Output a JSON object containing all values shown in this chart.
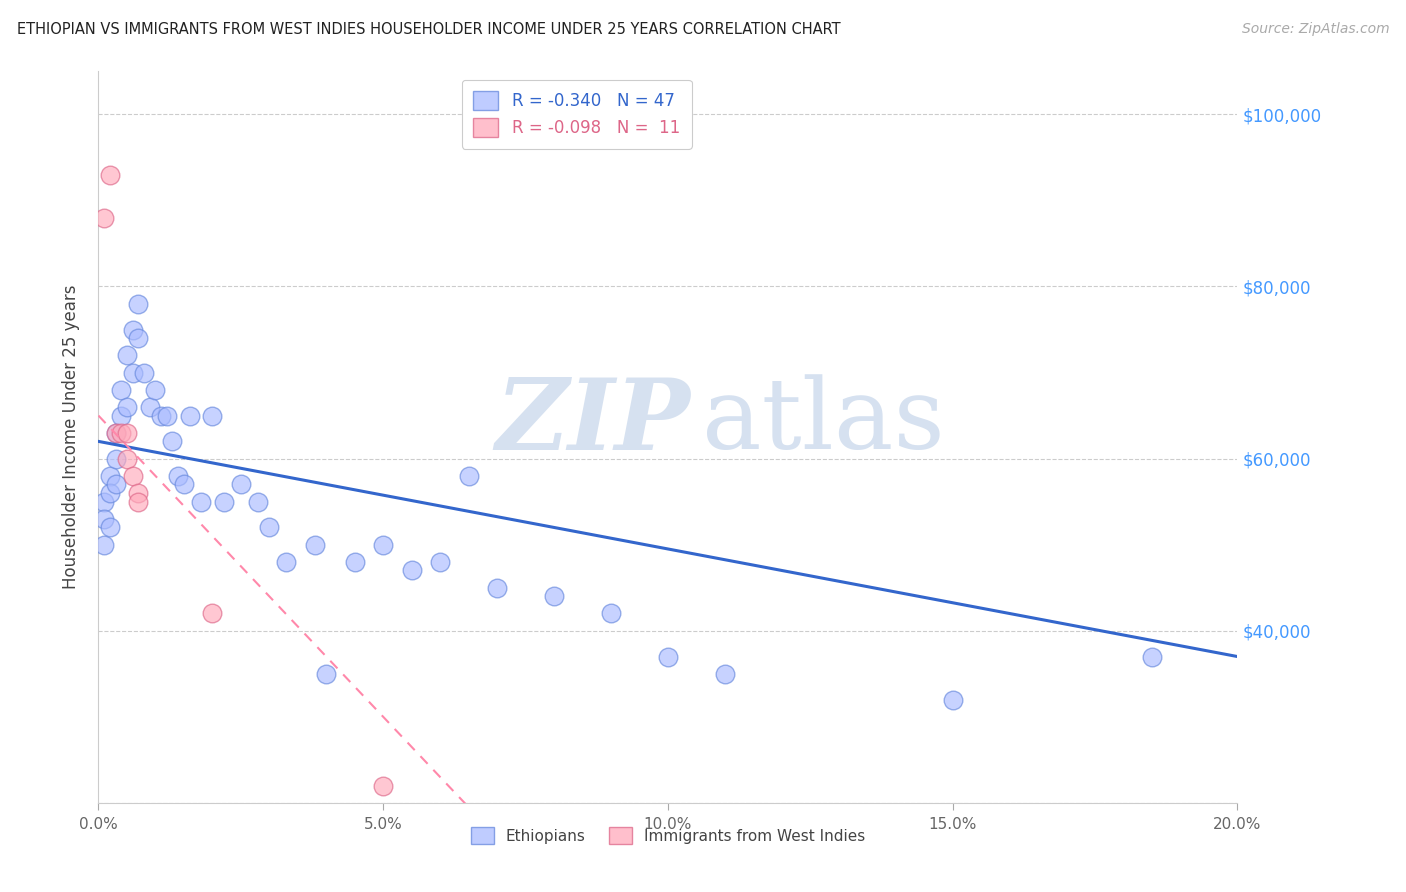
{
  "title": "ETHIOPIAN VS IMMIGRANTS FROM WEST INDIES HOUSEHOLDER INCOME UNDER 25 YEARS CORRELATION CHART",
  "source": "Source: ZipAtlas.com",
  "ylabel": "Householder Income Under 25 years",
  "xlabel_ticks": [
    "0.0%",
    "5.0%",
    "10.0%",
    "15.0%",
    "20.0%"
  ],
  "xlabel_vals": [
    0.0,
    0.05,
    0.1,
    0.15,
    0.2
  ],
  "right_ytick_labels": [
    "$100,000",
    "$80,000",
    "$60,000",
    "$40,000"
  ],
  "right_ytick_vals": [
    100000,
    80000,
    60000,
    40000
  ],
  "legend1_R": "R = -0.340",
  "legend1_N": "N = 47",
  "legend2_R": "R = -0.098",
  "legend2_N": "N =  11",
  "ethiopian_R": -0.34,
  "ethiopian_N": 47,
  "westindies_R": -0.098,
  "westindies_N": 11,
  "blue_fill": "#aabbff",
  "blue_edge": "#6688dd",
  "pink_fill": "#ffaabb",
  "pink_edge": "#dd6688",
  "blue_line_color": "#3366cc",
  "pink_line_color": "#ff88aa",
  "watermark_zip": "ZIP",
  "watermark_atlas": "atlas",
  "watermark_color_zip": "#ccd8ee",
  "watermark_color_atlas": "#ccd8ee",
  "xmin": 0.0,
  "xmax": 0.2,
  "ymin": 20000,
  "ymax": 105000,
  "ethiopian_x": [
    0.001,
    0.001,
    0.001,
    0.002,
    0.002,
    0.002,
    0.003,
    0.003,
    0.003,
    0.004,
    0.004,
    0.005,
    0.005,
    0.006,
    0.006,
    0.007,
    0.007,
    0.008,
    0.009,
    0.01,
    0.011,
    0.012,
    0.013,
    0.014,
    0.015,
    0.016,
    0.018,
    0.02,
    0.022,
    0.025,
    0.028,
    0.03,
    0.033,
    0.038,
    0.04,
    0.045,
    0.05,
    0.055,
    0.06,
    0.065,
    0.07,
    0.08,
    0.09,
    0.1,
    0.11,
    0.15,
    0.185
  ],
  "ethiopian_y": [
    55000,
    53000,
    50000,
    58000,
    56000,
    52000,
    63000,
    60000,
    57000,
    68000,
    65000,
    72000,
    66000,
    75000,
    70000,
    78000,
    74000,
    70000,
    66000,
    68000,
    65000,
    65000,
    62000,
    58000,
    57000,
    65000,
    55000,
    65000,
    55000,
    57000,
    55000,
    52000,
    48000,
    50000,
    35000,
    48000,
    50000,
    47000,
    48000,
    58000,
    45000,
    44000,
    42000,
    37000,
    35000,
    32000,
    37000
  ],
  "westindies_x": [
    0.001,
    0.002,
    0.003,
    0.004,
    0.005,
    0.005,
    0.006,
    0.007,
    0.007,
    0.05,
    0.02
  ],
  "westindies_y": [
    88000,
    93000,
    63000,
    63000,
    63000,
    60000,
    58000,
    56000,
    55000,
    22000,
    42000
  ]
}
